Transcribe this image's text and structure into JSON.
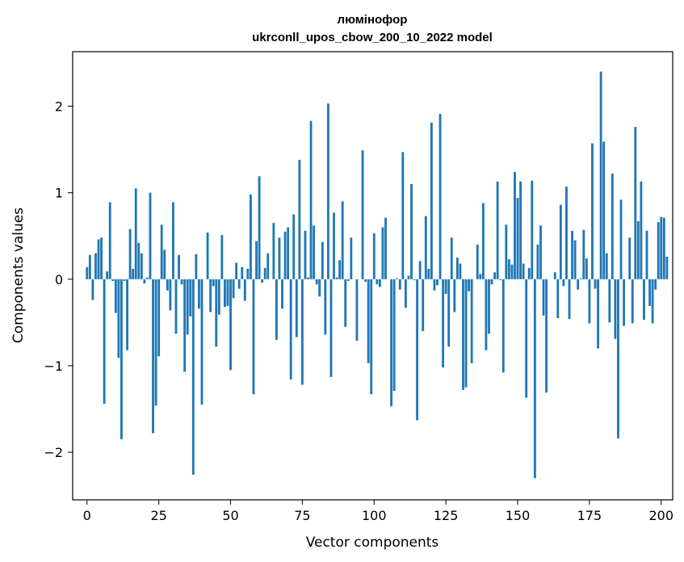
{
  "chart_data": {
    "type": "bar",
    "title": "люмінофор",
    "subtitle": "ukrconll_upos_cbow_200_10_2022 model",
    "xlabel": "Vector components",
    "ylabel": "Components values",
    "xlim": [
      -5,
      204
    ],
    "ylim": [
      -2.55,
      2.63
    ],
    "xticks": [
      0,
      25,
      50,
      75,
      100,
      125,
      150,
      175,
      200
    ],
    "yticks": [
      -2,
      -1,
      0,
      1,
      2
    ],
    "ytick_labels": [
      "−2",
      "−1",
      "0",
      "1",
      "2"
    ],
    "grid": false,
    "bar_color": "#1f77b4",
    "values": [
      0.14,
      0.28,
      -0.24,
      0.3,
      0.46,
      0.48,
      -1.44,
      0.09,
      0.89,
      -0.02,
      -0.39,
      -0.91,
      -1.85,
      -0.02,
      -0.82,
      0.58,
      0.12,
      1.05,
      0.42,
      0.3,
      -0.05,
      0.02,
      1.0,
      -1.78,
      -1.46,
      -0.89,
      0.63,
      0.34,
      -0.13,
      -0.36,
      0.89,
      -0.63,
      0.28,
      -0.06,
      -1.07,
      -0.64,
      -0.43,
      -2.26,
      0.29,
      -0.34,
      -1.45,
      0.0,
      0.54,
      -0.38,
      -0.08,
      -0.78,
      -0.41,
      0.51,
      -0.32,
      -0.31,
      -1.05,
      -0.22,
      0.19,
      -0.11,
      0.14,
      -0.25,
      0.12,
      0.98,
      -1.33,
      0.44,
      1.19,
      -0.04,
      0.13,
      0.3,
      0.0,
      0.65,
      -0.7,
      0.48,
      -0.34,
      0.55,
      0.6,
      -1.16,
      0.75,
      -0.67,
      1.38,
      -1.22,
      0.56,
      0.02,
      1.83,
      0.62,
      -0.06,
      -0.2,
      0.43,
      -0.64,
      2.03,
      -1.13,
      0.77,
      0.02,
      0.22,
      0.9,
      -0.55,
      -0.02,
      0.48,
      0.0,
      -0.71,
      0.0,
      1.49,
      -0.03,
      -0.97,
      -1.33,
      0.53,
      -0.06,
      -0.09,
      0.6,
      0.71,
      0.0,
      -1.47,
      -1.29,
      0.01,
      -0.12,
      1.47,
      -0.33,
      0.04,
      1.1,
      -0.01,
      -1.63,
      0.21,
      -0.6,
      0.73,
      0.12,
      1.81,
      -0.13,
      -0.07,
      1.91,
      -1.02,
      -0.17,
      -0.78,
      0.48,
      -0.38,
      0.25,
      0.18,
      -1.28,
      -1.25,
      -0.14,
      -0.97,
      0.0,
      0.4,
      0.06,
      0.88,
      -0.82,
      -0.63,
      -0.06,
      0.08,
      1.13,
      -0.01,
      -1.08,
      0.63,
      0.23,
      0.17,
      1.24,
      0.94,
      1.13,
      0.18,
      -1.37,
      0.13,
      1.14,
      -2.3,
      0.4,
      0.62,
      -0.42,
      -1.31,
      0.0,
      0.0,
      0.08,
      -0.45,
      0.86,
      -0.08,
      1.07,
      -0.46,
      0.56,
      0.45,
      -0.12,
      0.01,
      0.57,
      0.24,
      -0.51,
      1.57,
      -0.11,
      -0.8,
      2.4,
      1.59,
      0.3,
      -0.5,
      1.22,
      -0.69,
      -1.84,
      0.92,
      -0.54,
      0.0,
      0.48,
      -0.51,
      1.76,
      0.67,
      1.13,
      -0.47,
      0.56,
      -0.31,
      -0.51,
      -0.12,
      0.66,
      0.72,
      0.71,
      0.26
    ]
  }
}
